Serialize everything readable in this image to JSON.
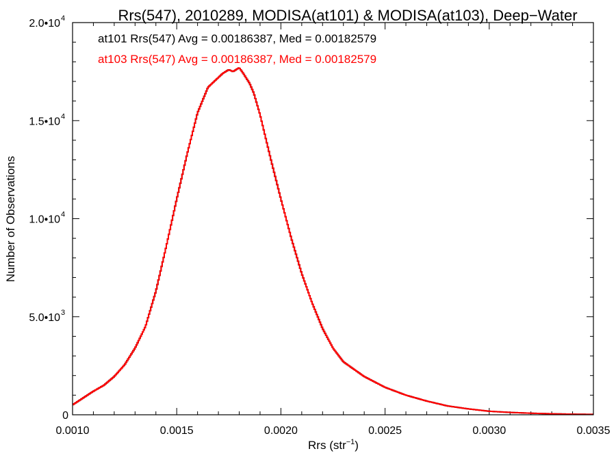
{
  "chart_data": {
    "type": "step",
    "title": "Rrs(547), 2010289, MODISA(at101) & MODISA(at103), Deep−Water",
    "xlabel": {
      "base": "Rrs (str",
      "sup": "−1",
      "tail": ")"
    },
    "ylabel": "Number of Observations",
    "xlim": [
      0.001,
      0.0035
    ],
    "ylim": [
      0,
      20000
    ],
    "x_ticks": [
      {
        "value": 0.001,
        "label": "0.0010"
      },
      {
        "value": 0.0015,
        "label": "0.0015"
      },
      {
        "value": 0.002,
        "label": "0.0020"
      },
      {
        "value": 0.0025,
        "label": "0.0025"
      },
      {
        "value": 0.003,
        "label": "0.0030"
      },
      {
        "value": 0.0035,
        "label": "0.0035"
      }
    ],
    "y_ticks": [
      {
        "value": 0,
        "mantissa": "0",
        "exp": ""
      },
      {
        "value": 5000,
        "mantissa": "5.0•10",
        "exp": "3"
      },
      {
        "value": 10000,
        "mantissa": "1.0•10",
        "exp": "4"
      },
      {
        "value": 15000,
        "mantissa": "1.5•10",
        "exp": "4"
      },
      {
        "value": 20000,
        "mantissa": "2.0•10",
        "exp": "4"
      }
    ],
    "annotations": [
      {
        "text": "at101 Rrs(547) Avg = 0.00186387, Med = 0.00182579",
        "color": "#000000"
      },
      {
        "text": "at103 Rrs(547) Avg = 0.00186387, Med = 0.00182579",
        "color": "#ff0000"
      }
    ],
    "series": [
      {
        "name": "at101",
        "color": "#000000"
      },
      {
        "name": "at103",
        "color": "#ff0000"
      }
    ],
    "x": [
      0.001,
      0.00105,
      0.0011,
      0.00115,
      0.0012,
      0.00125,
      0.0013,
      0.00135,
      0.0014,
      0.00145,
      0.0015,
      0.00155,
      0.0016,
      0.00165,
      0.0017,
      0.00172,
      0.00175,
      0.00177,
      0.0018,
      0.00182,
      0.00185,
      0.00187,
      0.0019,
      0.00195,
      0.002,
      0.00205,
      0.0021,
      0.00215,
      0.0022,
      0.00225,
      0.0023,
      0.0024,
      0.0025,
      0.0026,
      0.0027,
      0.0028,
      0.0029,
      0.003,
      0.0031,
      0.0032,
      0.0033,
      0.0034,
      0.0035
    ],
    "y": [
      500,
      850,
      1200,
      1500,
      1950,
      2550,
      3400,
      4500,
      6300,
      8600,
      11000,
      13300,
      15400,
      16700,
      17200,
      17400,
      17600,
      17500,
      17700,
      17400,
      16900,
      16400,
      15300,
      13100,
      11000,
      9000,
      7200,
      5700,
      4400,
      3400,
      2700,
      1950,
      1400,
      1000,
      700,
      450,
      300,
      180,
      120,
      80,
      50,
      30,
      20
    ]
  }
}
